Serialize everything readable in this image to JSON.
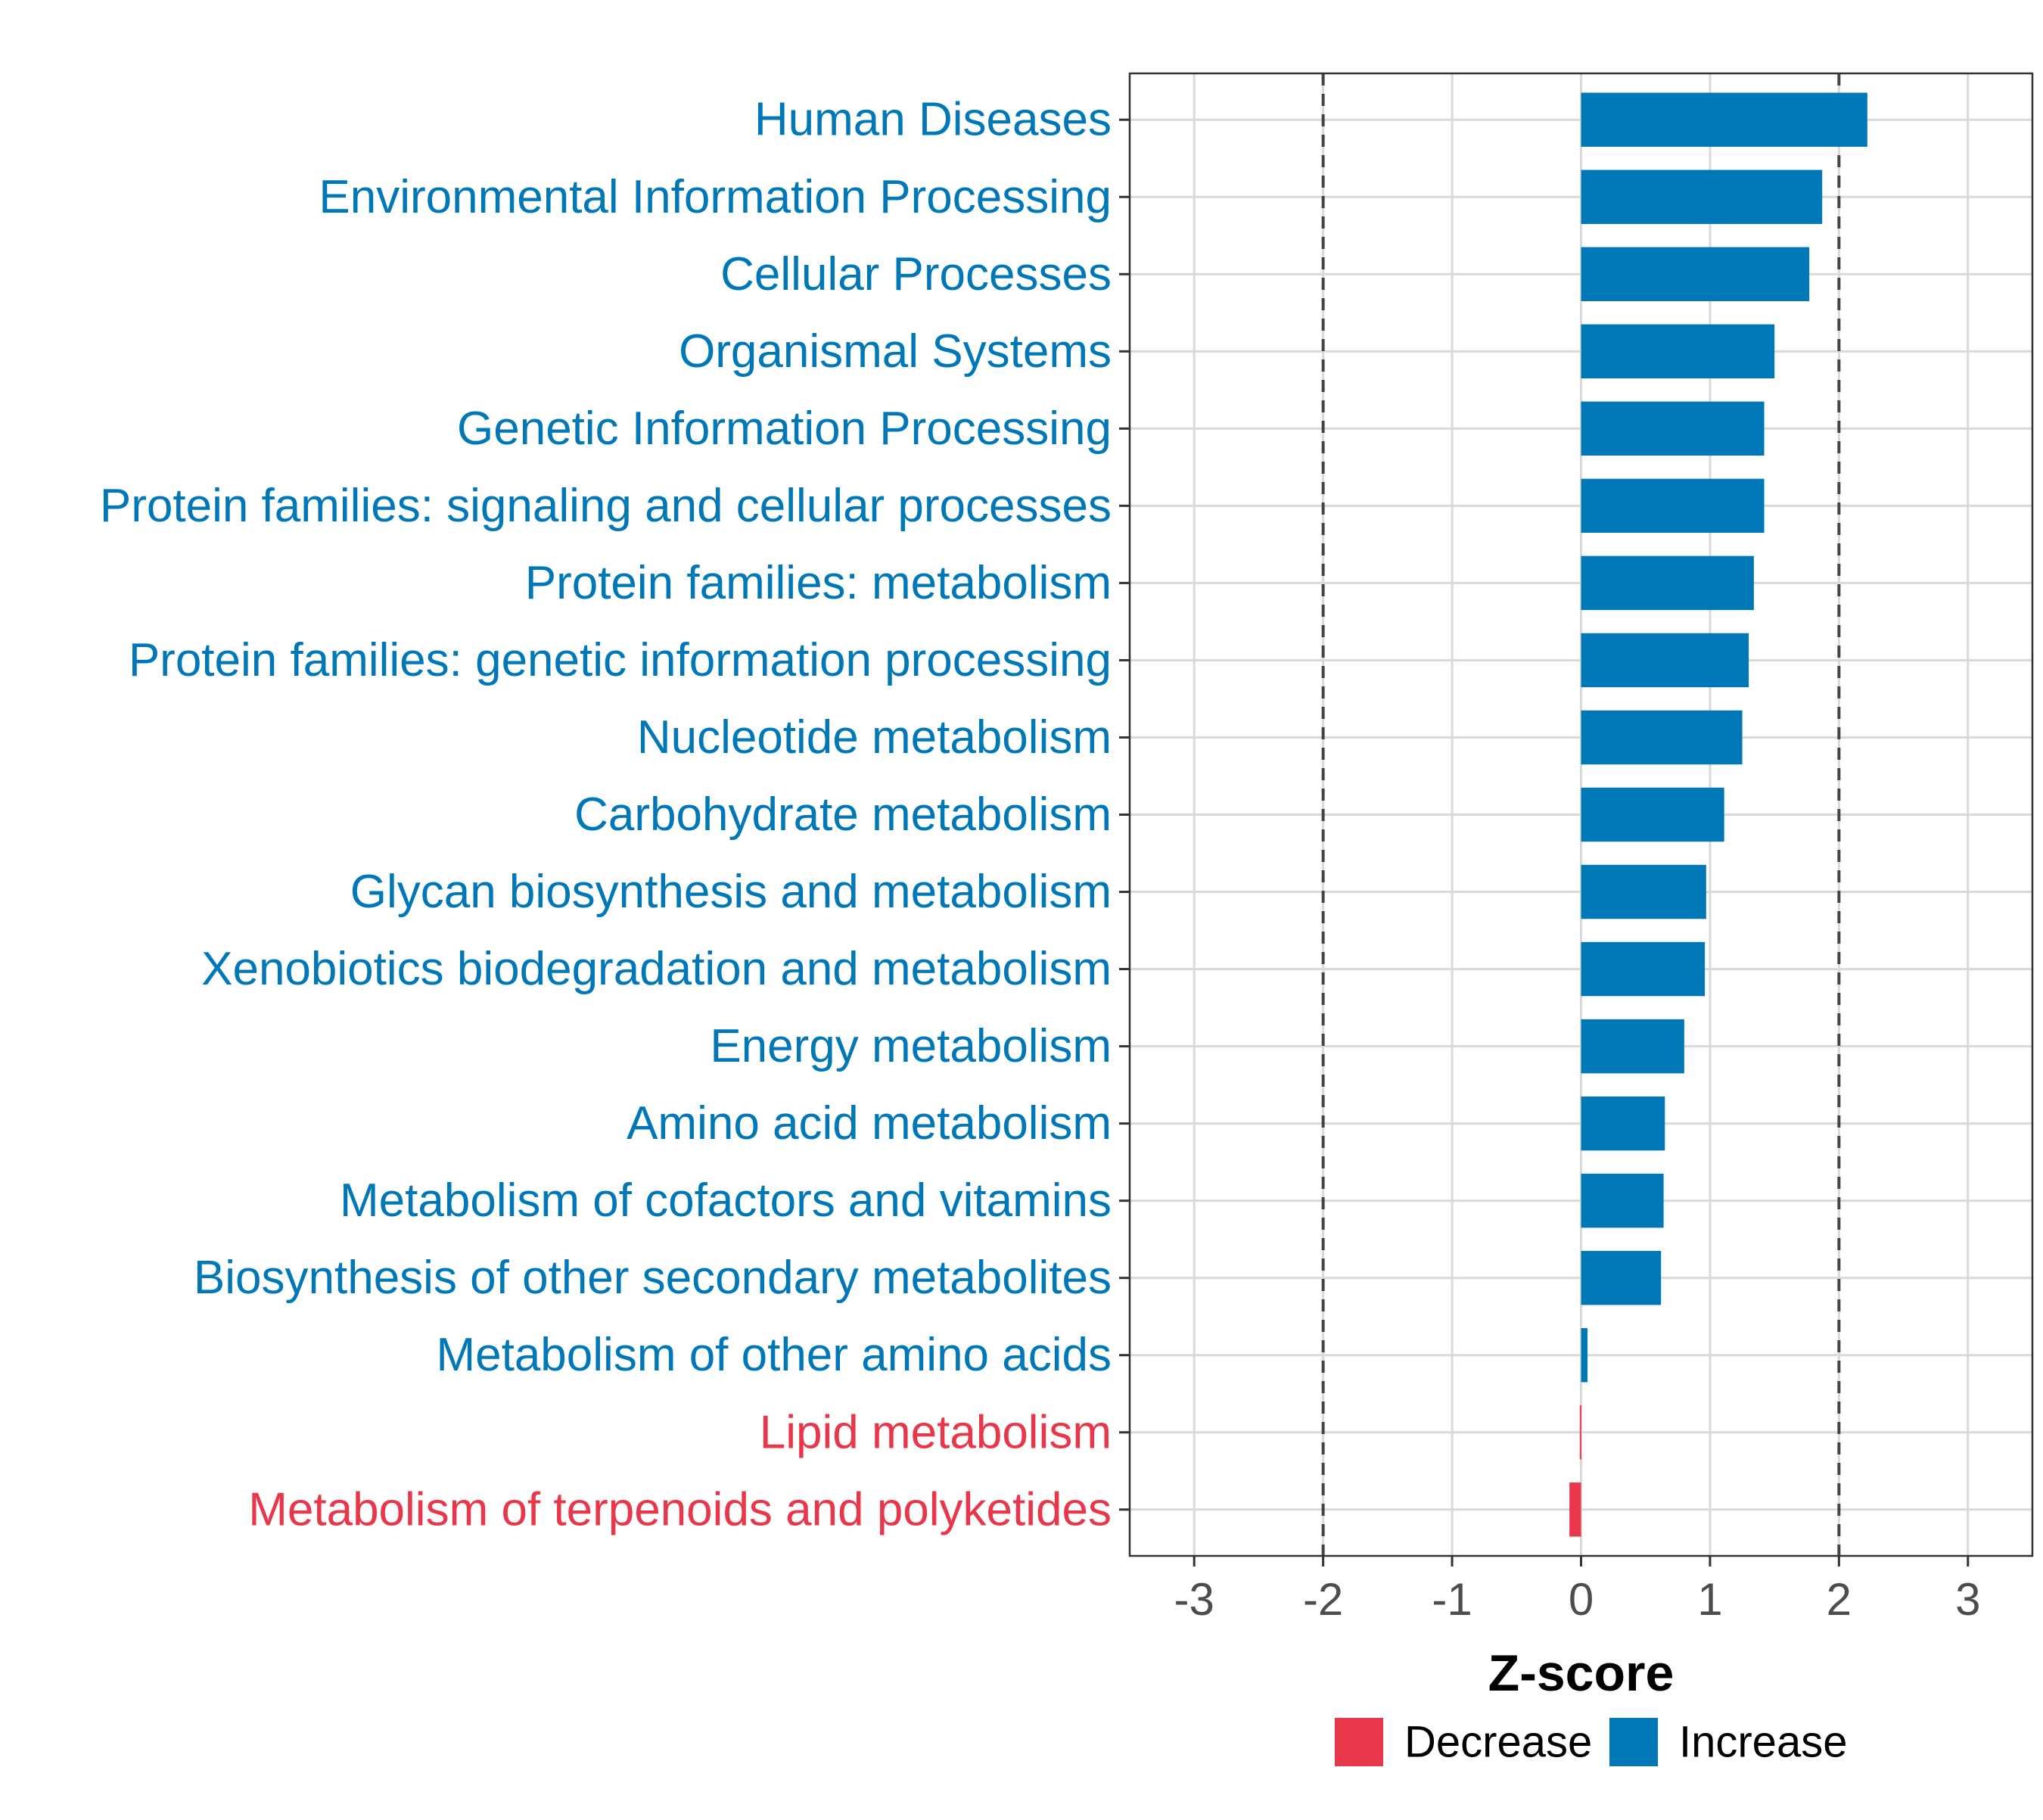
{
  "chart_data": {
    "type": "bar",
    "orientation": "horizontal",
    "xlabel": "Z-score",
    "xlim": [
      -3.5,
      3.5
    ],
    "xticks": [
      -3,
      -2,
      -1,
      0,
      1,
      2,
      3
    ],
    "xtick_labels": [
      "-3",
      "-2",
      "-1",
      "0",
      "1",
      "2",
      "3"
    ],
    "reference_lines": [
      -2,
      2
    ],
    "grid": true,
    "categories": [
      "Human Diseases",
      "Environmental Information Processing",
      "Cellular Processes",
      "Organismal Systems",
      "Genetic Information Processing",
      "Protein families: signaling and cellular processes",
      "Protein families: metabolism",
      "Protein families: genetic information processing",
      "Nucleotide metabolism",
      "Carbohydrate metabolism",
      "Glycan biosynthesis and metabolism",
      "Xenobiotics biodegradation and metabolism",
      "Energy metabolism",
      "Amino acid metabolism",
      "Metabolism of cofactors and vitamins",
      "Biosynthesis of other secondary metabolites",
      "Metabolism of other amino acids",
      "Lipid metabolism",
      "Metabolism of terpenoids and polyketides"
    ],
    "values": [
      2.22,
      1.87,
      1.77,
      1.5,
      1.42,
      1.42,
      1.34,
      1.3,
      1.25,
      1.11,
      0.97,
      0.96,
      0.8,
      0.65,
      0.64,
      0.62,
      0.05,
      -0.01,
      -0.09
    ],
    "groups": [
      "Increase",
      "Increase",
      "Increase",
      "Increase",
      "Increase",
      "Increase",
      "Increase",
      "Increase",
      "Increase",
      "Increase",
      "Increase",
      "Increase",
      "Increase",
      "Increase",
      "Increase",
      "Increase",
      "Increase",
      "Decrease",
      "Decrease"
    ],
    "legend": {
      "position": "bottom",
      "entries": [
        {
          "label": "Decrease",
          "color": "#E8374A"
        },
        {
          "label": "Increase",
          "color": "#0077B6"
        }
      ]
    },
    "colors": {
      "Decrease": "#E8374A",
      "Increase": "#0077B6"
    }
  }
}
